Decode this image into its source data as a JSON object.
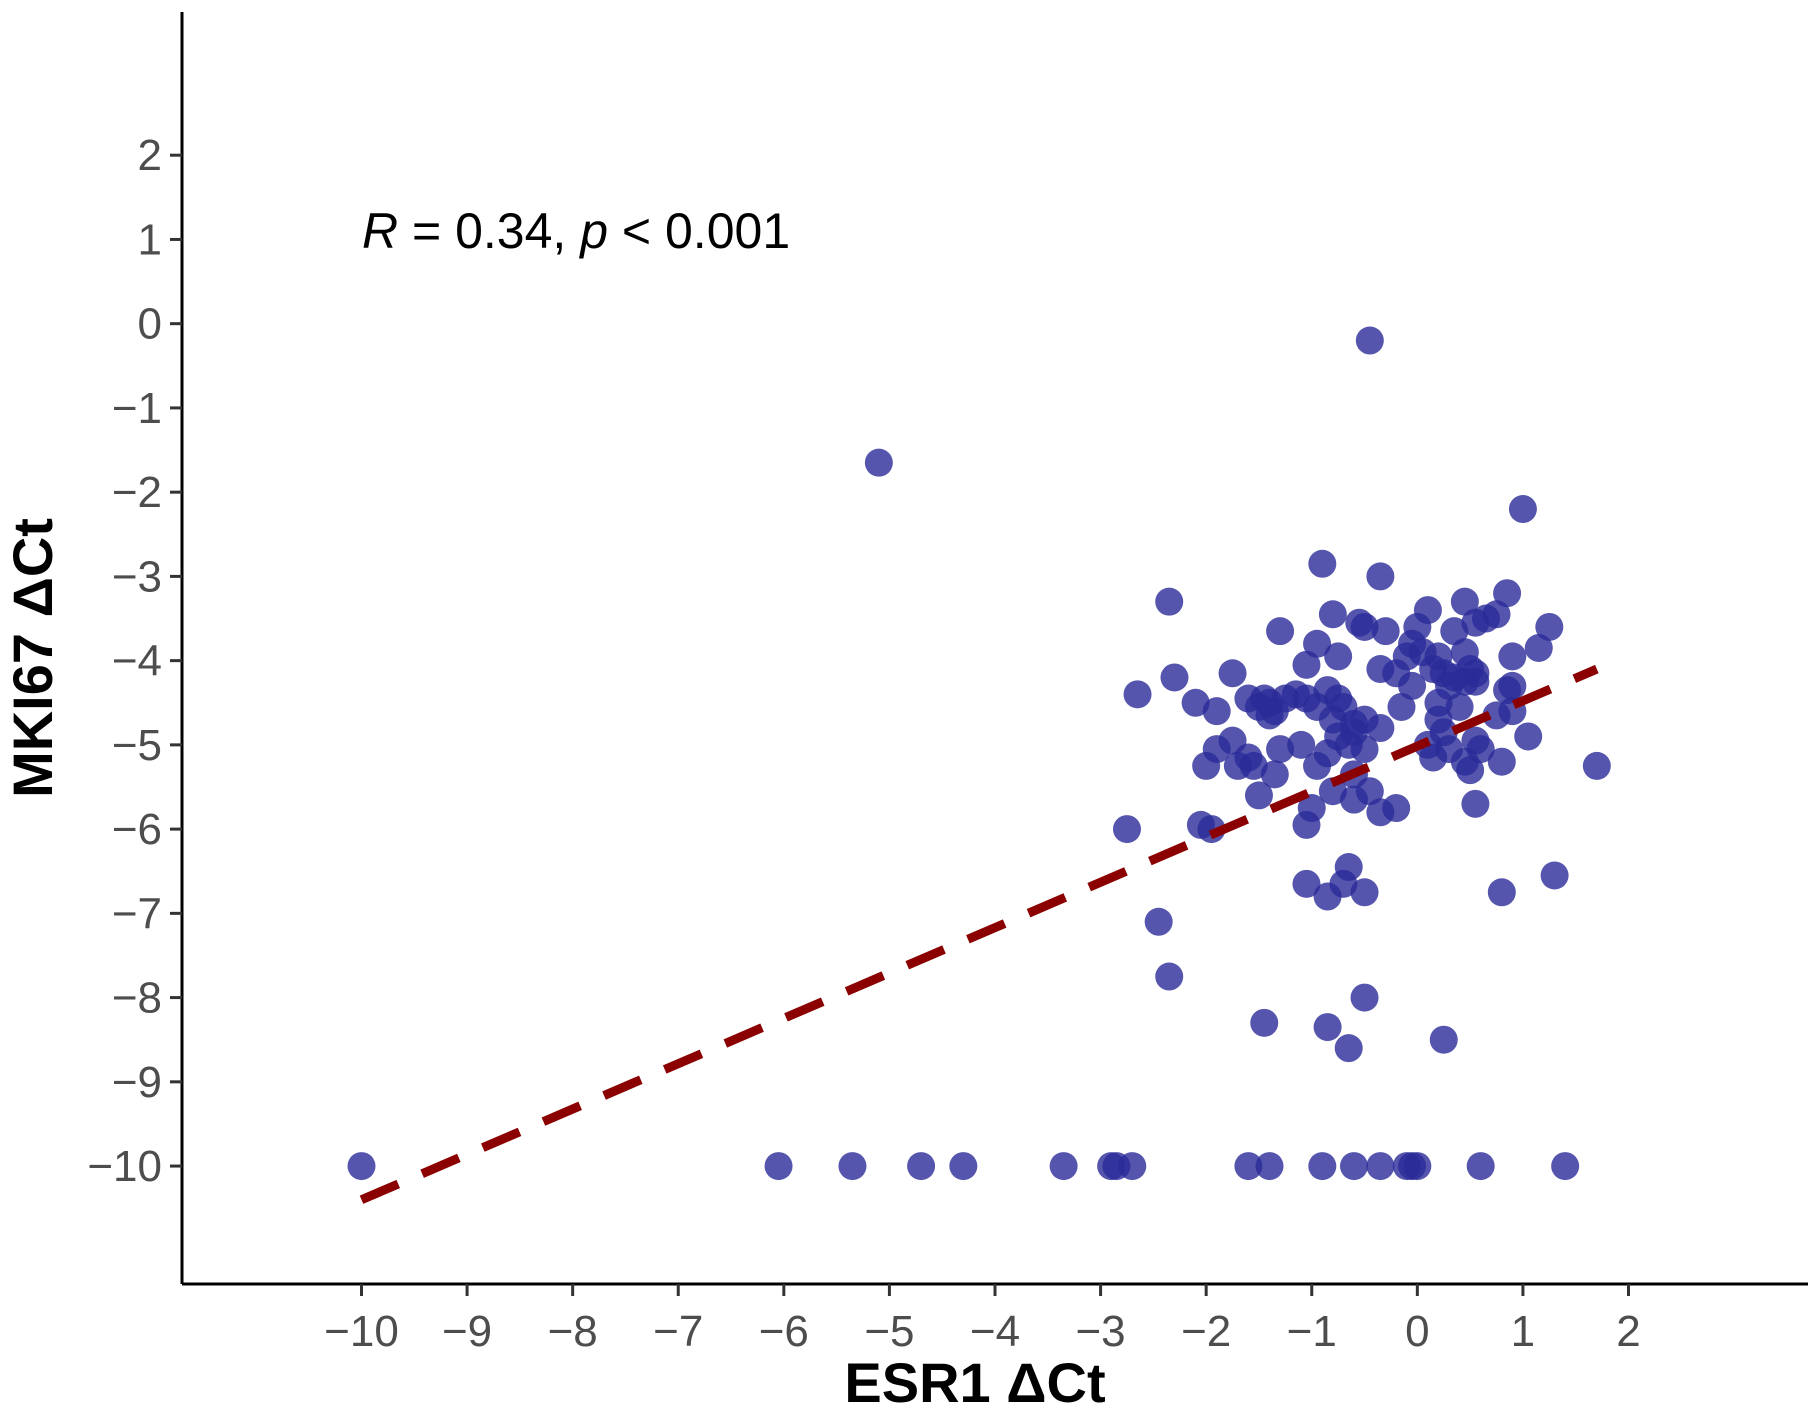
{
  "chart_data": {
    "type": "scatter",
    "xlabel": "ESR1 ΔCt",
    "ylabel": "MKI67 ΔCt",
    "xlim": [
      -11.7,
      3.7
    ],
    "ylim": [
      -11.4,
      3.7
    ],
    "x_ticks": [
      -10,
      -9,
      -8,
      -7,
      -6,
      -5,
      -4,
      -3,
      -2,
      -1,
      0,
      1,
      2
    ],
    "y_ticks": [
      2,
      1,
      0,
      -1,
      -2,
      -3,
      -4,
      -5,
      -6,
      -7,
      -8,
      -9,
      -10
    ],
    "x_tick_labels": [
      "−10",
      "−9",
      "−8",
      "−7",
      "−6",
      "−5",
      "−4",
      "−3",
      "−2",
      "−1",
      "0",
      "1",
      "2"
    ],
    "y_tick_labels": [
      "2",
      "1",
      "0",
      "−1",
      "−2",
      "−3",
      "−4",
      "−5",
      "−6",
      "−7",
      "−8",
      "−9",
      "−10"
    ],
    "grid": false,
    "point_color": "#2b2b99",
    "point_opacity": 0.8,
    "trend_color": "#8b0000",
    "annotation": {
      "r_symbol": "R",
      "r_text": " = 0.34, ",
      "p_symbol": "p",
      "p_text": " < 0.001"
    },
    "trendline": {
      "x": [
        -10,
        1.7
      ],
      "y": [
        -10.4,
        -4.1
      ]
    },
    "points": [
      [
        -0.45,
        -0.2
      ],
      [
        -5.1,
        -1.65
      ],
      [
        1.0,
        -2.2
      ],
      [
        -0.9,
        -2.85
      ],
      [
        -0.35,
        -3.0
      ],
      [
        -2.35,
        -3.3
      ],
      [
        0.85,
        -3.2
      ],
      [
        0.45,
        -3.3
      ],
      [
        0.1,
        -3.4
      ],
      [
        -0.8,
        -3.45
      ],
      [
        0.75,
        -3.45
      ],
      [
        -0.55,
        -3.55
      ],
      [
        -0.5,
        -3.6
      ],
      [
        0.0,
        -3.6
      ],
      [
        0.35,
        -3.65
      ],
      [
        0.55,
        -3.55
      ],
      [
        1.25,
        -3.6
      ],
      [
        -1.3,
        -3.65
      ],
      [
        -0.3,
        -3.65
      ],
      [
        0.65,
        -3.5
      ],
      [
        -0.95,
        -3.8
      ],
      [
        -0.05,
        -3.8
      ],
      [
        1.15,
        -3.85
      ],
      [
        -0.75,
        -3.95
      ],
      [
        0.9,
        -3.95
      ],
      [
        -1.05,
        -4.05
      ],
      [
        -0.1,
        -3.95
      ],
      [
        0.05,
        -3.9
      ],
      [
        0.2,
        -3.95
      ],
      [
        0.45,
        -3.9
      ],
      [
        -1.75,
        -4.15
      ],
      [
        -2.3,
        -4.2
      ],
      [
        -0.35,
        -4.1
      ],
      [
        -0.2,
        -4.15
      ],
      [
        0.15,
        -4.1
      ],
      [
        0.25,
        -4.15
      ],
      [
        0.35,
        -4.2
      ],
      [
        0.5,
        -4.1
      ],
      [
        0.55,
        -4.15
      ],
      [
        -0.05,
        -4.3
      ],
      [
        0.3,
        -4.3
      ],
      [
        0.45,
        -4.25
      ],
      [
        0.55,
        -4.25
      ],
      [
        -2.65,
        -4.4
      ],
      [
        -1.6,
        -4.45
      ],
      [
        -1.45,
        -4.45
      ],
      [
        -1.25,
        -4.45
      ],
      [
        -1.05,
        -4.45
      ],
      [
        -0.85,
        -4.35
      ],
      [
        -0.75,
        -4.45
      ],
      [
        0.85,
        -4.35
      ],
      [
        0.9,
        -4.3
      ],
      [
        -2.1,
        -4.5
      ],
      [
        -1.5,
        -4.55
      ],
      [
        -1.35,
        -4.6
      ],
      [
        -1.4,
        -4.65
      ],
      [
        -0.95,
        -4.55
      ],
      [
        -0.7,
        -4.55
      ],
      [
        -0.15,
        -4.55
      ],
      [
        0.2,
        -4.5
      ],
      [
        -1.9,
        -4.6
      ],
      [
        -0.8,
        -4.7
      ],
      [
        -0.6,
        -4.75
      ],
      [
        -0.5,
        -4.7
      ],
      [
        0.2,
        -4.7
      ],
      [
        0.4,
        -4.55
      ],
      [
        0.75,
        -4.65
      ],
      [
        0.9,
        -4.6
      ],
      [
        -1.15,
        -4.4
      ],
      [
        -1.4,
        -4.5
      ],
      [
        -0.35,
        -4.8
      ],
      [
        -0.6,
        -4.85
      ],
      [
        -0.75,
        -4.9
      ],
      [
        0.25,
        -4.85
      ],
      [
        0.55,
        -4.95
      ],
      [
        1.05,
        -4.9
      ],
      [
        -1.75,
        -4.95
      ],
      [
        -1.9,
        -5.05
      ],
      [
        -1.6,
        -5.15
      ],
      [
        -1.55,
        -5.25
      ],
      [
        -1.3,
        -5.05
      ],
      [
        -1.1,
        -5.0
      ],
      [
        -0.85,
        -5.1
      ],
      [
        -0.65,
        -5.0
      ],
      [
        -0.5,
        -5.05
      ],
      [
        0.1,
        -5.0
      ],
      [
        0.3,
        -5.05
      ],
      [
        0.15,
        -5.15
      ],
      [
        0.45,
        -5.2
      ],
      [
        0.6,
        -5.05
      ],
      [
        -2.0,
        -5.25
      ],
      [
        -1.35,
        -5.35
      ],
      [
        -0.95,
        -5.25
      ],
      [
        -0.6,
        -5.35
      ],
      [
        0.5,
        -5.3
      ],
      [
        0.8,
        -5.2
      ],
      [
        1.7,
        -5.25
      ],
      [
        -1.7,
        -5.25
      ],
      [
        -1.5,
        -5.6
      ],
      [
        -0.8,
        -5.55
      ],
      [
        -0.6,
        -5.65
      ],
      [
        -0.45,
        -5.55
      ],
      [
        -1.0,
        -5.75
      ],
      [
        -0.35,
        -5.8
      ],
      [
        -0.2,
        -5.75
      ],
      [
        0.55,
        -5.7
      ],
      [
        -2.75,
        -6.0
      ],
      [
        -2.05,
        -5.95
      ],
      [
        -1.95,
        -6.0
      ],
      [
        -1.05,
        -5.95
      ],
      [
        -0.65,
        -6.45
      ],
      [
        -1.05,
        -6.65
      ],
      [
        -0.7,
        -6.65
      ],
      [
        -0.85,
        -6.8
      ],
      [
        -0.5,
        -6.75
      ],
      [
        0.8,
        -6.75
      ],
      [
        1.3,
        -6.55
      ],
      [
        -2.45,
        -7.1
      ],
      [
        -2.35,
        -7.75
      ],
      [
        -0.5,
        -8.0
      ],
      [
        -1.45,
        -8.3
      ],
      [
        -0.85,
        -8.35
      ],
      [
        -0.65,
        -8.6
      ],
      [
        0.25,
        -8.5
      ],
      [
        -10.0,
        -10.0
      ],
      [
        -6.05,
        -10.0
      ],
      [
        -5.35,
        -10.0
      ],
      [
        -4.7,
        -10.0
      ],
      [
        -4.3,
        -10.0
      ],
      [
        -3.35,
        -10.0
      ],
      [
        -2.9,
        -10.0
      ],
      [
        -2.85,
        -10.0
      ],
      [
        -2.7,
        -10.0
      ],
      [
        -1.6,
        -10.0
      ],
      [
        -1.4,
        -10.0
      ],
      [
        -0.9,
        -10.0
      ],
      [
        -0.6,
        -10.0
      ],
      [
        -0.35,
        -10.0
      ],
      [
        -0.1,
        -10.0
      ],
      [
        -0.05,
        -10.0
      ],
      [
        0.0,
        -10.0
      ],
      [
        0.6,
        -10.0
      ],
      [
        1.4,
        -10.0
      ]
    ]
  }
}
